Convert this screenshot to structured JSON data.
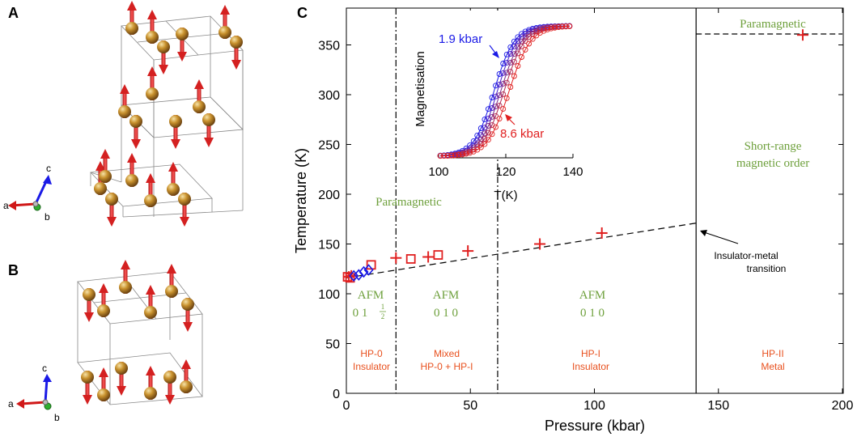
{
  "panels": {
    "a": "A",
    "b": "B",
    "c": "C"
  },
  "crystal_axes": {
    "a": "a",
    "b": "b",
    "c": "c"
  },
  "colors": {
    "red": "#e02020",
    "blue": "#1a1ae6",
    "green": "#6ea03c",
    "orange": "#e8501e",
    "purple": "#7a2a8a",
    "gold": "#b07a20"
  },
  "chart_data": {
    "type": "scatter",
    "xlabel": "Pressure (kbar)",
    "ylabel": "Temperature (K)",
    "xlim": [
      0,
      200
    ],
    "ylim": [
      0,
      375
    ],
    "xticks": [
      0,
      50,
      100,
      150,
      200
    ],
    "yticks": [
      0,
      50,
      100,
      150,
      200,
      250,
      300,
      350
    ],
    "series": [
      {
        "name": "crosses",
        "marker": "plus",
        "color": "#e02020",
        "points": [
          [
            1,
            117
          ],
          [
            2,
            118
          ],
          [
            20,
            136
          ],
          [
            33,
            137
          ],
          [
            49,
            143
          ],
          [
            78,
            150
          ],
          [
            103,
            161
          ],
          [
            184,
            360
          ]
        ]
      },
      {
        "name": "squares",
        "marker": "square",
        "color": "#e02020",
        "points": [
          [
            0.5,
            117
          ],
          [
            1.5,
            116
          ],
          [
            10,
            129
          ],
          [
            26,
            135
          ],
          [
            37,
            139
          ]
        ]
      },
      {
        "name": "diamonds",
        "marker": "diamond",
        "color": "#1a1ae6",
        "points": [
          [
            3,
            118
          ],
          [
            5,
            119
          ],
          [
            7,
            122
          ],
          [
            9,
            124
          ]
        ]
      }
    ],
    "dashed_fit": [
      [
        0,
        116
      ],
      [
        141,
        171
      ]
    ],
    "paramagnetic_line": {
      "x": [
        141,
        200
      ],
      "y": 361
    },
    "phase_boundaries": [
      {
        "x": 20,
        "style": "dashdot"
      },
      {
        "x": 61,
        "style": "dashdot"
      },
      {
        "x": 141,
        "style": "solid"
      }
    ],
    "labels": {
      "paramagnetic_low": "Paramagnetic",
      "paramagnetic_high": "Paramagnetic",
      "short_range_1": "Short-range",
      "short_range_2": "magnetic order",
      "afm": "AFM",
      "afm_vec_1": "0 1 ",
      "afm_vec_frac_num": "1",
      "afm_vec_frac_den": "2",
      "afm_vec_2": "0 1 0",
      "afm_vec_3": "0 1 0",
      "hp0_1": "HP-0",
      "hp0_2": "Insulator",
      "mixed_1": "Mixed",
      "mixed_2": "HP-0 + HP-I",
      "hpi_1": "HP-I",
      "hpi_2": "Insulator",
      "hpii_1": "HP-II",
      "hpii_2": "Metal",
      "imt_1": "Insulator-metal",
      "imt_2": "transition"
    },
    "inset": {
      "xlabel": "T(K)",
      "ylabel": "Magnetisation",
      "xlim": [
        100,
        140
      ],
      "ylim": [
        0,
        1
      ],
      "xticks": [
        100,
        120,
        140
      ],
      "curve_labels": [
        {
          "text": "1.9 kbar",
          "color": "#1a1ae6"
        },
        {
          "text": "8.6 kbar",
          "color": "#e02020"
        }
      ],
      "curves": [
        {
          "pressure": 1.9,
          "Tc": 116.5,
          "width": 3.0,
          "color": "#1a1ae6"
        },
        {
          "pressure": 3.5,
          "Tc": 117.5,
          "width": 3.0,
          "color": "#4a20c8"
        },
        {
          "pressure": 5.2,
          "Tc": 118.5,
          "width": 3.1,
          "color": "#7a2a8a"
        },
        {
          "pressure": 6.9,
          "Tc": 119.5,
          "width": 3.1,
          "color": "#b02850"
        },
        {
          "pressure": 8.6,
          "Tc": 121.0,
          "width": 3.2,
          "color": "#e02020"
        }
      ]
    }
  }
}
